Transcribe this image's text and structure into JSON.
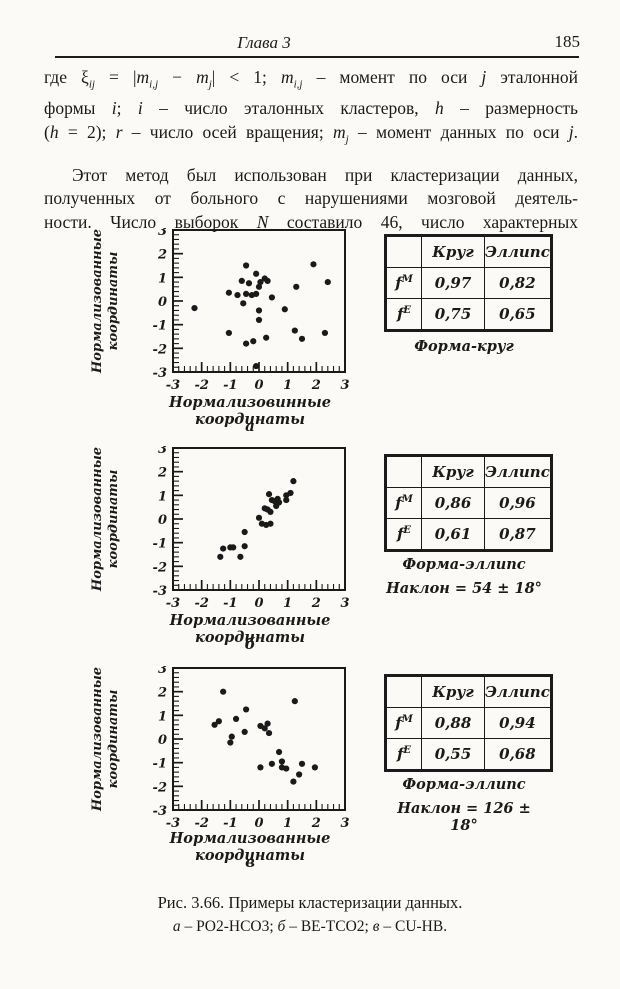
{
  "colors": {
    "ink": "#1a1a1a",
    "paper": "#fbfaf6"
  },
  "header": {
    "chapter": "Глава 3",
    "page_number": "185"
  },
  "text": {
    "p1_lines_html": [
      "где  ξ<sub><i>ij</i></sub> = |<i>m</i><sub><i>i,j</i></sub> − <i>m</i><sub><i>j</i></sub>| &lt; 1;  <i>m</i><sub><i>i,j</i></sub> – момент по оси <i>j</i> эталонной",
      "формы  <i>i</i>;  <i>i</i> – число эталонных кластеров,  <i>h</i> – размерность",
      "(<i>h</i> = 2); <i>r</i> – число осей вращения; <i>m</i><sub><i>j</i></sub> – момент данных по оси <i>j</i>."
    ],
    "p2_lines_html": [
      "Этот метод был использован при кластеризации данных,",
      "полученных от больного с нарушениями мозговой деятель-",
      "ности. Число выборок <i>N</i> составило 46, число характерных"
    ]
  },
  "chart_data": [
    {
      "type": "scatter",
      "ylabel_line1": "Нормализованные",
      "ylabel_line2": "координаты",
      "xlabel": "Нормализовинные координаты",
      "sublabel": "а",
      "xlim": [
        -3,
        3
      ],
      "ylim": [
        -3,
        3
      ],
      "xticks": [
        -3,
        -2,
        -1,
        0,
        1,
        2,
        3
      ],
      "yticks": [
        3,
        2,
        1,
        0,
        -1,
        -2,
        -3
      ],
      "points": [
        [
          -0.45,
          1.5
        ],
        [
          1.9,
          1.55
        ],
        [
          -0.1,
          1.15
        ],
        [
          -0.6,
          0.85
        ],
        [
          -0.35,
          0.75
        ],
        [
          0.05,
          0.8
        ],
        [
          0.2,
          0.95
        ],
        [
          0.3,
          0.85
        ],
        [
          2.4,
          0.8
        ],
        [
          0,
          0.6
        ],
        [
          1.3,
          0.6
        ],
        [
          -1.05,
          0.35
        ],
        [
          -0.75,
          0.25
        ],
        [
          -0.45,
          0.3
        ],
        [
          -0.25,
          0.25
        ],
        [
          -0.1,
          0.3
        ],
        [
          0.45,
          0.15
        ],
        [
          -0.55,
          -0.1
        ],
        [
          -2.25,
          -0.3
        ],
        [
          0,
          -0.4
        ],
        [
          0.9,
          -0.35
        ],
        [
          0,
          -0.8
        ],
        [
          1.25,
          -1.25
        ],
        [
          -1.05,
          -1.35
        ],
        [
          2.3,
          -1.35
        ],
        [
          0.25,
          -1.55
        ],
        [
          1.5,
          -1.6
        ],
        [
          -0.45,
          -1.8
        ],
        [
          -0.2,
          -1.7
        ],
        [
          -0.1,
          -2.75
        ]
      ]
    },
    {
      "type": "scatter",
      "ylabel_line1": "Нормализованные",
      "ylabel_line2": "координаты",
      "xlabel": "Нормализованные координаты",
      "sublabel": "б",
      "xlim": [
        -3,
        3
      ],
      "ylim": [
        -3,
        3
      ],
      "xticks": [
        -3,
        -2,
        -1,
        0,
        1,
        2,
        3
      ],
      "yticks": [
        3,
        2,
        1,
        0,
        -1,
        -2,
        -3
      ],
      "points": [
        [
          1.2,
          1.6
        ],
        [
          0.35,
          1.05
        ],
        [
          0.95,
          1.0
        ],
        [
          1.1,
          1.1
        ],
        [
          0.45,
          0.8
        ],
        [
          0.55,
          0.75
        ],
        [
          0.65,
          0.85
        ],
        [
          0.7,
          0.7
        ],
        [
          0.95,
          0.8
        ],
        [
          0.2,
          0.45
        ],
        [
          0.3,
          0.4
        ],
        [
          0.4,
          0.3
        ],
        [
          0.6,
          0.55
        ],
        [
          0,
          0.05
        ],
        [
          0.1,
          -0.2
        ],
        [
          0.25,
          -0.25
        ],
        [
          0.4,
          -0.2
        ],
        [
          -0.5,
          -0.55
        ],
        [
          -1.25,
          -1.25
        ],
        [
          -1,
          -1.2
        ],
        [
          -0.9,
          -1.2
        ],
        [
          -0.5,
          -1.15
        ],
        [
          -1.35,
          -1.6
        ],
        [
          -0.65,
          -1.6
        ]
      ]
    },
    {
      "type": "scatter",
      "ylabel_line1": "Нормализованные",
      "ylabel_line2": "координаты",
      "xlabel": "Нормализованные координаты",
      "sublabel": "в",
      "xlim": [
        -3,
        3
      ],
      "ylim": [
        -3,
        3
      ],
      "xticks": [
        -3,
        -2,
        -1,
        0,
        1,
        2,
        3
      ],
      "yticks": [
        3,
        2,
        1,
        0,
        -1,
        -2,
        -3
      ],
      "points": [
        [
          -1.25,
          2.0
        ],
        [
          1.25,
          1.6
        ],
        [
          -0.45,
          1.25
        ],
        [
          -0.8,
          0.85
        ],
        [
          -1.55,
          0.6
        ],
        [
          -1.4,
          0.75
        ],
        [
          0.05,
          0.55
        ],
        [
          0.2,
          0.45
        ],
        [
          0.3,
          0.65
        ],
        [
          0.35,
          0.25
        ],
        [
          -0.5,
          0.3
        ],
        [
          -0.95,
          0.1
        ],
        [
          -1,
          -0.15
        ],
        [
          0.7,
          -0.55
        ],
        [
          0.05,
          -1.2
        ],
        [
          0.45,
          -1.05
        ],
        [
          0.8,
          -0.95
        ],
        [
          0.8,
          -1.2
        ],
        [
          0.95,
          -1.25
        ],
        [
          1.5,
          -1.05
        ],
        [
          1.95,
          -1.2
        ],
        [
          1.2,
          -1.8
        ],
        [
          1.4,
          -1.5
        ]
      ]
    }
  ],
  "tables": [
    {
      "headers": [
        "",
        "Круг",
        "Эллипс"
      ],
      "rows": [
        {
          "f": "f",
          "sup": "M",
          "krug": "0,97",
          "ellips": "0,82"
        },
        {
          "f": "f",
          "sup": "E",
          "krug": "0,75",
          "ellips": "0,65"
        }
      ],
      "caption1": "Форма-круг",
      "caption2": ""
    },
    {
      "headers": [
        "",
        "Круг",
        "Эллипс"
      ],
      "rows": [
        {
          "f": "f",
          "sup": "M",
          "krug": "0,86",
          "ellips": "0,96"
        },
        {
          "f": "f",
          "sup": "E",
          "krug": "0,61",
          "ellips": "0,87"
        }
      ],
      "caption1": "Форма-эллипс",
      "caption2": "Наклон = 54 ± 18°"
    },
    {
      "headers": [
        "",
        "Круг",
        "Эллипс"
      ],
      "rows": [
        {
          "f": "f",
          "sup": "M",
          "krug": "0,88",
          "ellips": "0,94"
        },
        {
          "f": "f",
          "sup": "E",
          "krug": "0,55",
          "ellips": "0,68"
        }
      ],
      "caption1": "Форма-эллипс",
      "caption2": "Наклон = 126 ± 18°"
    }
  ],
  "figure_caption": {
    "line1": "Рис. 3.66. Примеры кластеризации данных.",
    "line2_html": "<i>а</i> – PO2-HCO3;  <i>б</i> – BE-TCO2;  <i>в</i> – CU-HB."
  }
}
